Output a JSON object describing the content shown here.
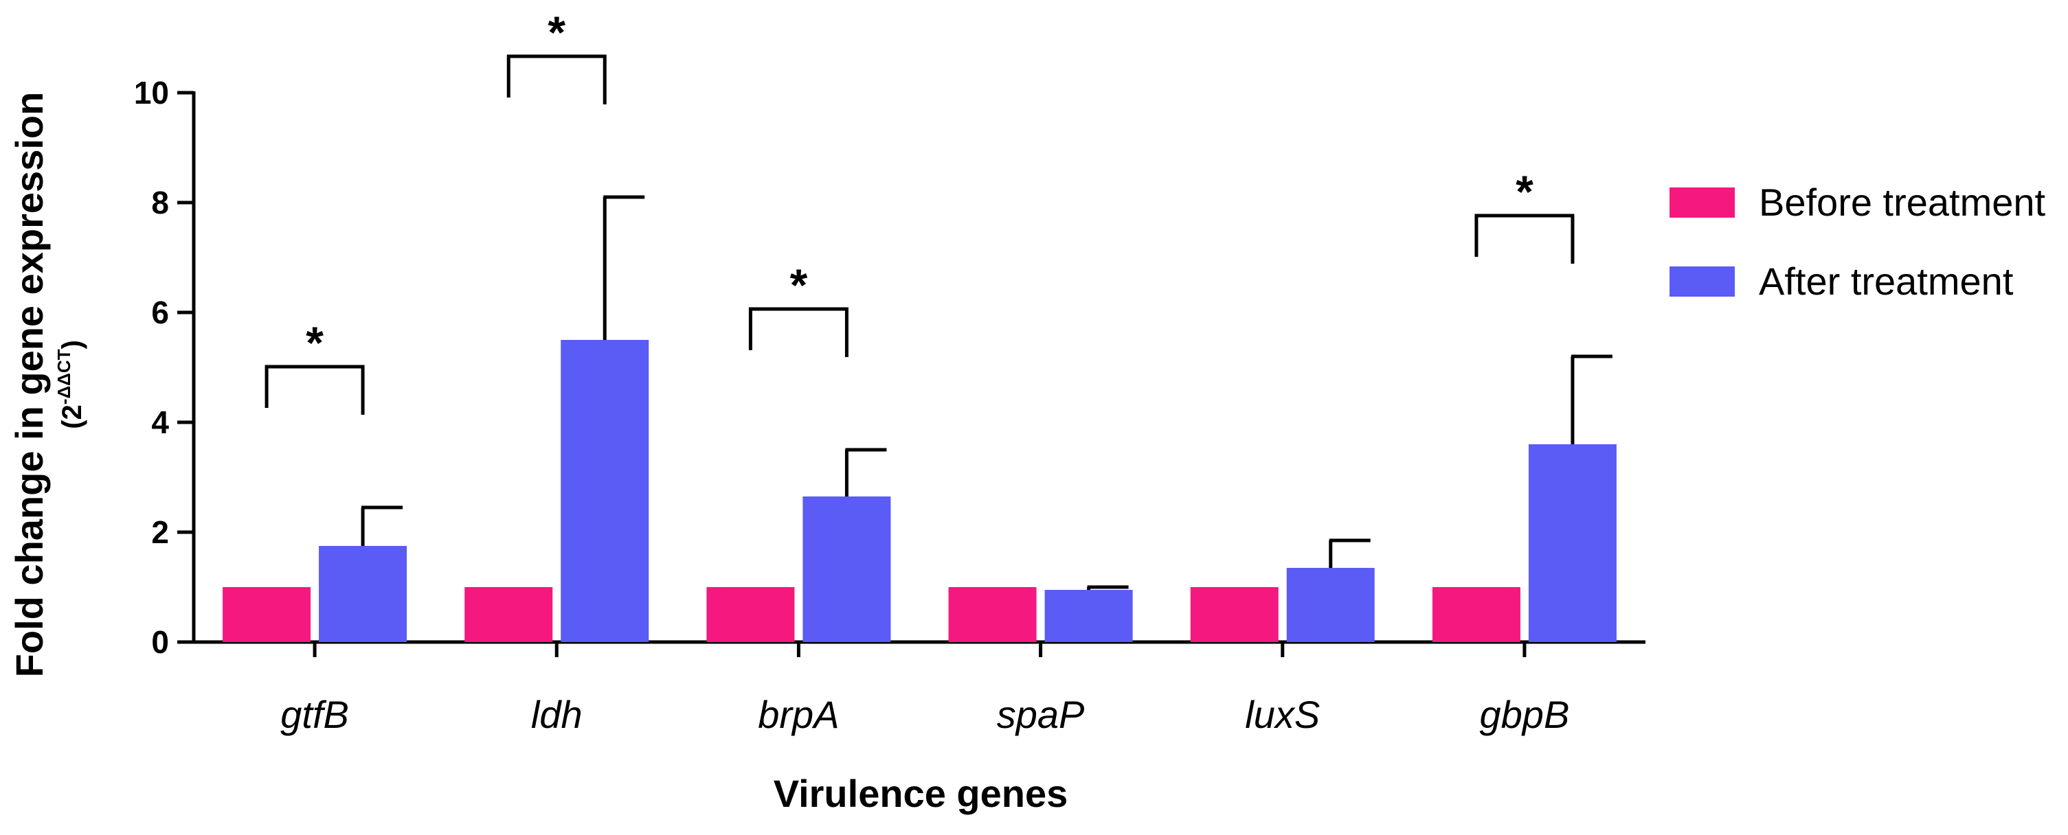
{
  "chart_data": {
    "type": "bar",
    "title": "",
    "xlabel": "Virulence genes",
    "ylabel": {
      "main": "Fold change in gene expression",
      "sub_prefix": "(2",
      "sub_sup": "-ΔΔCT",
      "sub_suffix": ")"
    },
    "ylim": [
      0,
      10
    ],
    "yticks": [
      "0",
      "2",
      "4",
      "6",
      "8",
      "10"
    ],
    "categories": [
      "gtfB",
      "ldh",
      "brpA",
      "spaP",
      "luxS",
      "gbpB"
    ],
    "series": [
      {
        "name": "Before treatment",
        "color": "#F5187E",
        "values": [
          1.0,
          1.0,
          1.0,
          1.0,
          1.0,
          1.0
        ],
        "errors": [
          0,
          0,
          0,
          0,
          0,
          0
        ]
      },
      {
        "name": "After treatment",
        "color": "#5B5BF5",
        "values": [
          1.75,
          5.5,
          2.65,
          0.95,
          1.35,
          3.6
        ],
        "errors": [
          0.7,
          2.6,
          0.85,
          0.05,
          0.5,
          1.6
        ]
      }
    ],
    "significance": [
      {
        "category": "gtfB",
        "label": "*"
      },
      {
        "category": "ldh",
        "label": "*"
      },
      {
        "category": "brpA",
        "label": "*"
      },
      {
        "category": "gbpB",
        "label": "*"
      }
    ],
    "legend_position": "right"
  }
}
